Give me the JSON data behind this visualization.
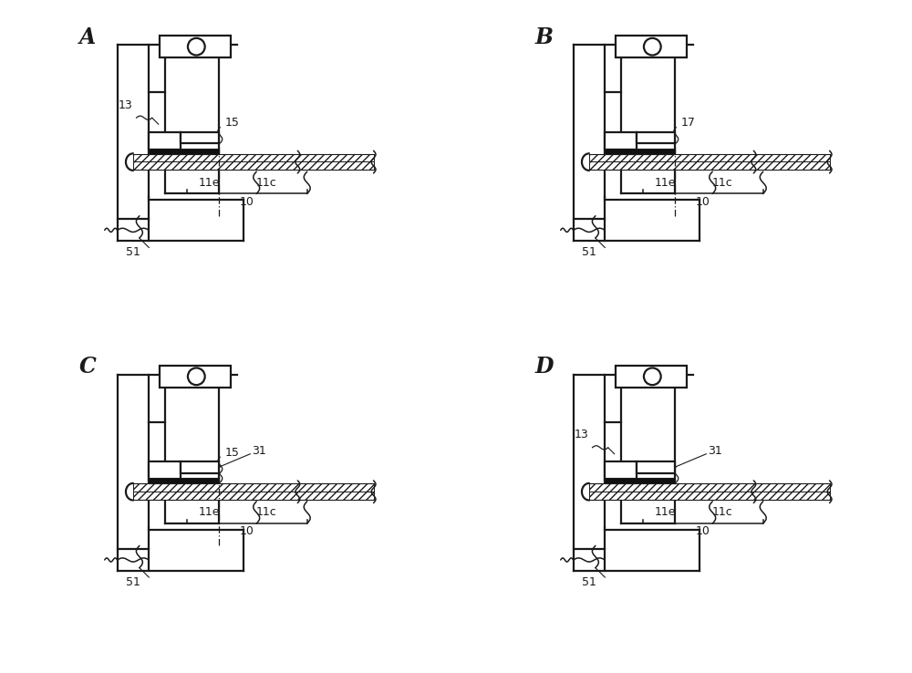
{
  "bg_color": "#ffffff",
  "lc": "#1a1a1a",
  "fig_w": 10.0,
  "fig_h": 7.38,
  "dpi": 100,
  "panels": [
    {
      "label": "A",
      "show_13": true,
      "show_15": true,
      "show_17": false,
      "show_31": false
    },
    {
      "label": "B",
      "show_13": false,
      "show_15": false,
      "show_17": true,
      "show_31": false
    },
    {
      "label": "C",
      "show_13": false,
      "show_15": true,
      "show_17": false,
      "show_31": true
    },
    {
      "label": "D",
      "show_13": true,
      "show_15": false,
      "show_17": false,
      "show_31": true
    }
  ]
}
